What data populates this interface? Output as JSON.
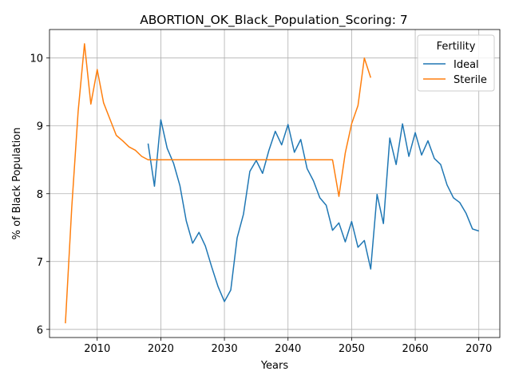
{
  "chart_data": {
    "type": "line",
    "title": "ABORTION_OK_Black_Population_Scoring: 7",
    "xlabel": "Years",
    "ylabel": "% of Black Population",
    "xlim": [
      2002.5,
      2073.3
    ],
    "ylim": [
      5.88,
      10.42
    ],
    "x_ticks": [
      2010,
      2020,
      2030,
      2040,
      2050,
      2060,
      2070
    ],
    "y_ticks": [
      6,
      7,
      8,
      9,
      10
    ],
    "grid": true,
    "legend": {
      "title": "Fertility",
      "placement": "top-right"
    },
    "series": [
      {
        "name": "Ideal",
        "color": "#1f77b4",
        "x": [
          2018,
          2019,
          2020,
          2021,
          2022,
          2023,
          2024,
          2025,
          2026,
          2027,
          2028,
          2029,
          2030,
          2031,
          2032,
          2033,
          2034,
          2035,
          2036,
          2037,
          2038,
          2039,
          2040,
          2041,
          2042,
          2043,
          2044,
          2045,
          2046,
          2047,
          2048,
          2049,
          2050,
          2051,
          2052,
          2053,
          2054,
          2055,
          2056,
          2057,
          2058,
          2059,
          2060,
          2061,
          2062,
          2063,
          2064,
          2065,
          2066,
          2067,
          2068,
          2069,
          2070
        ],
        "y": [
          8.74,
          8.11,
          9.09,
          8.67,
          8.45,
          8.12,
          7.6,
          7.27,
          7.43,
          7.23,
          6.92,
          6.63,
          6.41,
          6.58,
          7.35,
          7.7,
          8.33,
          8.49,
          8.3,
          8.64,
          8.92,
          8.72,
          9.02,
          8.61,
          8.8,
          8.37,
          8.19,
          7.94,
          7.83,
          7.46,
          7.57,
          7.29,
          7.59,
          7.21,
          7.31,
          6.89,
          7.99,
          7.56,
          8.82,
          8.43,
          9.03,
          8.55,
          8.9,
          8.57,
          8.78,
          8.52,
          8.43,
          8.13,
          7.94,
          7.87,
          7.71,
          7.48,
          7.45
        ]
      },
      {
        "name": "Sterile",
        "color": "#ff7f0e",
        "x": [
          2005,
          2006,
          2007,
          2008,
          2009,
          2010,
          2011,
          2012,
          2013,
          2014,
          2015,
          2016,
          2017,
          2018,
          2019,
          2020,
          2021,
          2022,
          2023,
          2024,
          2025,
          2026,
          2027,
          2028,
          2029,
          2030,
          2031,
          2032,
          2033,
          2034,
          2035,
          2036,
          2037,
          2038,
          2039,
          2040,
          2041,
          2042,
          2043,
          2044,
          2045,
          2046,
          2047,
          2048,
          2049,
          2050,
          2051,
          2052,
          2053
        ],
        "y": [
          6.09,
          7.8,
          9.21,
          10.21,
          9.32,
          9.83,
          9.34,
          9.1,
          8.86,
          8.78,
          8.69,
          8.64,
          8.55,
          8.5,
          8.5,
          8.5,
          8.5,
          8.5,
          8.5,
          8.5,
          8.5,
          8.5,
          8.5,
          8.5,
          8.5,
          8.5,
          8.5,
          8.5,
          8.5,
          8.5,
          8.5,
          8.5,
          8.5,
          8.5,
          8.5,
          8.5,
          8.5,
          8.5,
          8.5,
          8.5,
          8.5,
          8.5,
          8.5,
          7.96,
          8.6,
          9.03,
          9.3,
          10.0,
          9.71
        ]
      }
    ]
  }
}
